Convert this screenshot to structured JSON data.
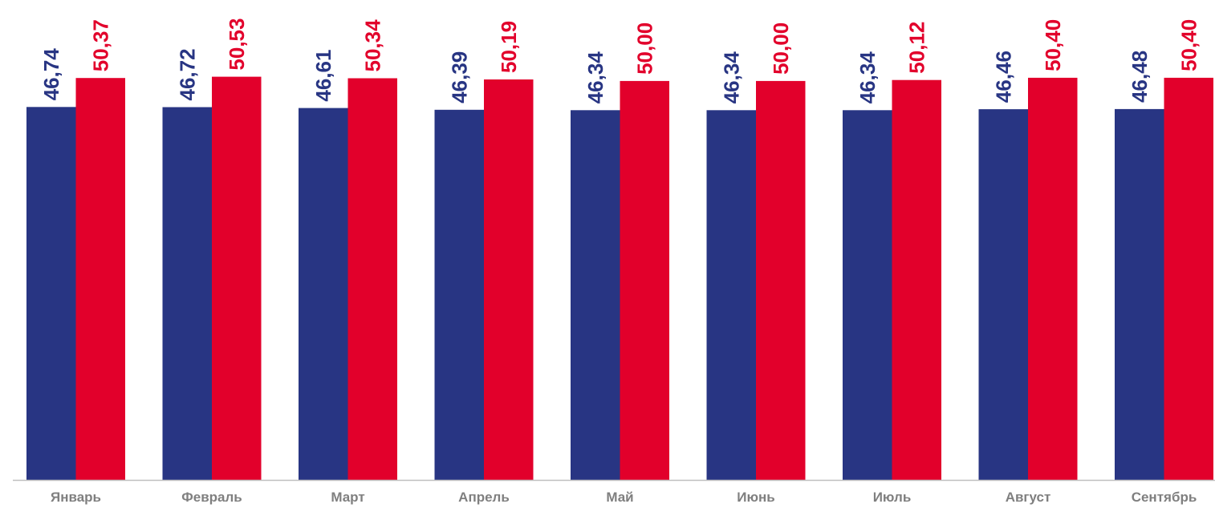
{
  "chart_data": {
    "type": "bar",
    "categories": [
      "Январь",
      "Февраль",
      "Март",
      "Апрель",
      "Май",
      "Июнь",
      "Июль",
      "Август",
      "Сентябрь"
    ],
    "series": [
      {
        "values": [
          46.74,
          46.72,
          46.61,
          46.39,
          46.34,
          46.34,
          46.34,
          46.46,
          46.48
        ],
        "labels": [
          "46,74",
          "46,72",
          "46,61",
          "46,39",
          "46,34",
          "46,34",
          "46,34",
          "46,46",
          "46,48"
        ],
        "color": "#283583"
      },
      {
        "values": [
          50.37,
          50.53,
          50.34,
          50.19,
          50.0,
          50.0,
          50.12,
          50.4,
          50.4
        ],
        "labels": [
          "50,37",
          "50,53",
          "50,34",
          "50,19",
          "50,00",
          "50,00",
          "50,12",
          "50,40",
          "50,40"
        ],
        "color": "#e2002b"
      }
    ],
    "title": "",
    "xlabel": "",
    "ylabel": "",
    "ylim": [
      0,
      51.5
    ],
    "grid": false,
    "legend": "none",
    "data_labels": "rotated-vertical-above-bars",
    "axis_color": "#bfbfbf",
    "tick_label_color": "#7f7f7f"
  }
}
